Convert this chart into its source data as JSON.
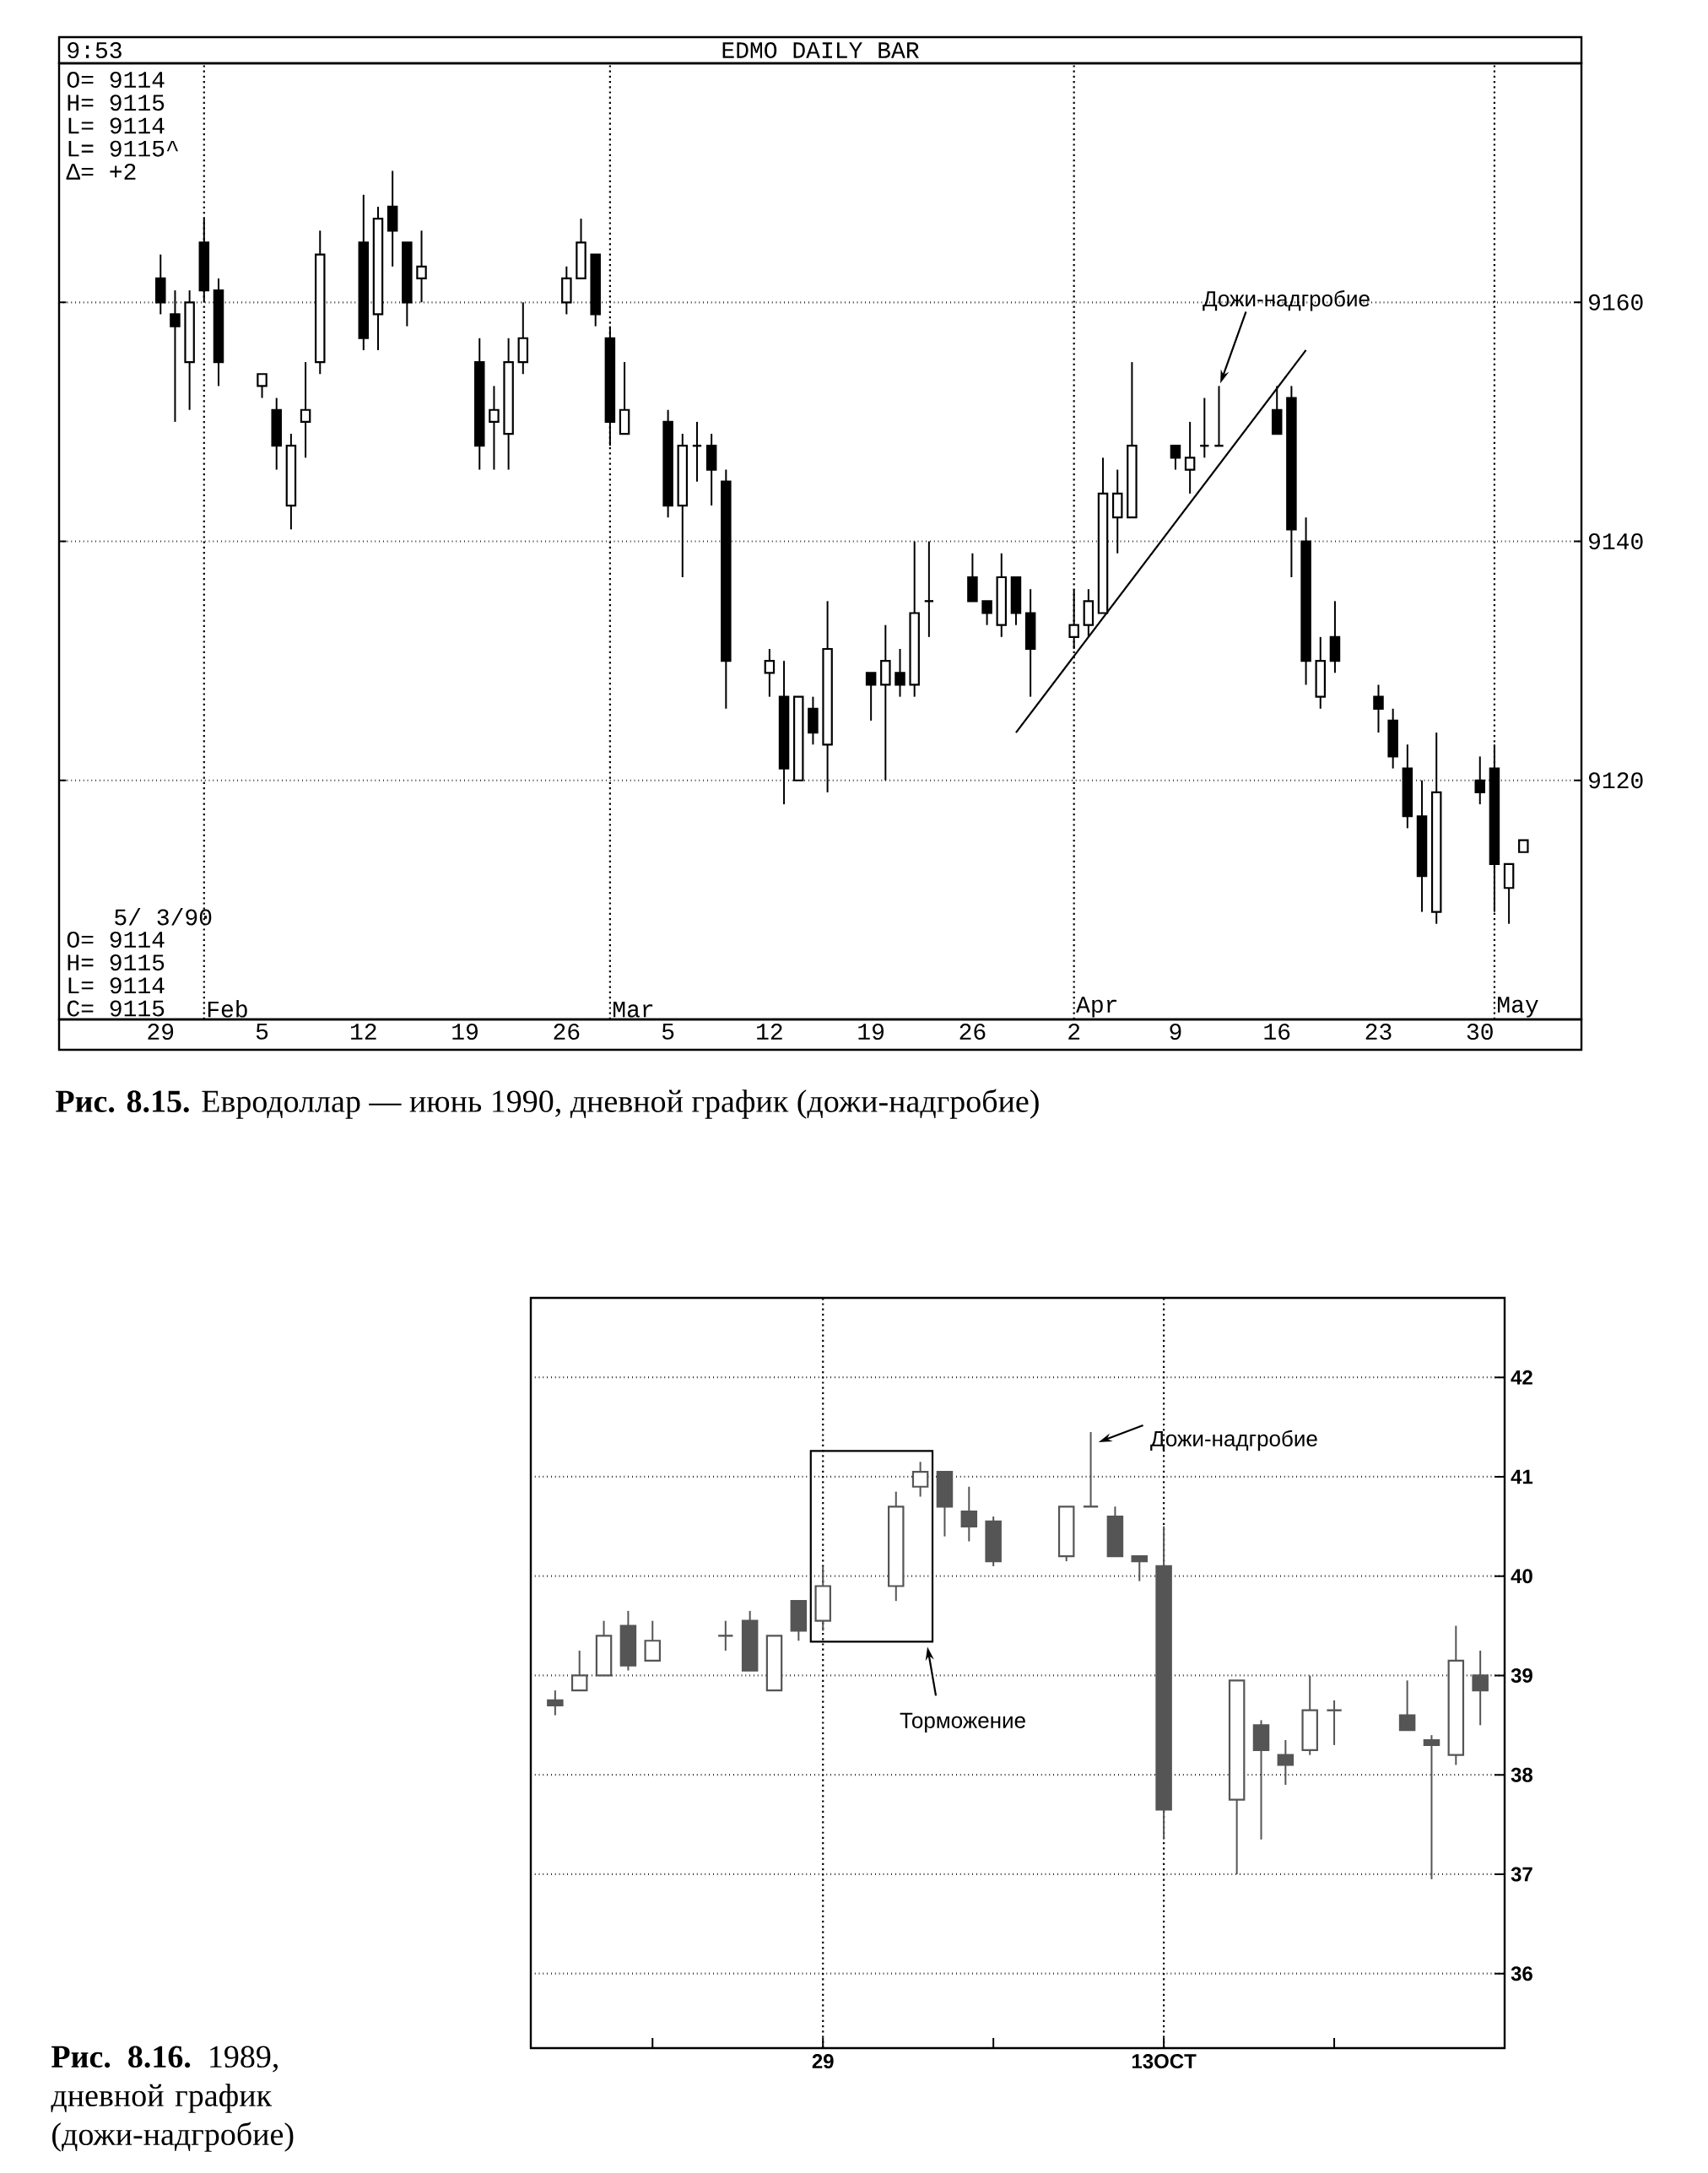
{
  "chart_data": [
    {
      "type": "candlestick",
      "title": "EDMO DAILY BAR",
      "color": "#000000",
      "annotations": [
        "9:53",
        "O= 9114",
        "H= 9115",
        "L= 9114",
        "L= 9115^",
        "Δ= +2",
        "5/ 3/90",
        "O= 9114",
        "H= 9115",
        "L= 9114",
        "C= 9115",
        "Дожи-надгробие",
        "**Рис. 8.15.** Евродоллар — июнь 1990, дневной график (дожи-надгробие)"
      ],
      "x": [
        "1990-01-29",
        "1990-01-30",
        "1990-01-31",
        "1990-02-01",
        "1990-02-02",
        "1990-02-05",
        "1990-02-06",
        "1990-02-07",
        "1990-02-08",
        "1990-02-09",
        "1990-02-12",
        "1990-02-13",
        "1990-02-14",
        "1990-02-15",
        "1990-02-16",
        "1990-02-20",
        "1990-02-21",
        "1990-02-22",
        "1990-02-23",
        "1990-02-26",
        "1990-02-27",
        "1990-02-28",
        "1990-03-01",
        "1990-03-02",
        "1990-03-05",
        "1990-03-06",
        "1990-03-07",
        "1990-03-08",
        "1990-03-09",
        "1990-03-12",
        "1990-03-13",
        "1990-03-14",
        "1990-03-15",
        "1990-03-16",
        "1990-03-19",
        "1990-03-20",
        "1990-03-21",
        "1990-03-22",
        "1990-03-23",
        "1990-03-26",
        "1990-03-27",
        "1990-03-28",
        "1990-03-29",
        "1990-03-30",
        "1990-04-02",
        "1990-04-03",
        "1990-04-04",
        "1990-04-05",
        "1990-04-06",
        "1990-04-09",
        "1990-04-10",
        "1990-04-11",
        "1990-04-12",
        "1990-04-16",
        "1990-04-17",
        "1990-04-18",
        "1990-04-19",
        "1990-04-20",
        "1990-04-23",
        "1990-04-24",
        "1990-04-25",
        "1990-04-26",
        "1990-04-27",
        "1990-04-30",
        "1990-05-01",
        "1990-05-02",
        "1990-05-03"
      ],
      "ohlc": [
        [
          9162,
          9164,
          9159,
          9160
        ],
        [
          9159,
          9161,
          9150,
          9158
        ],
        [
          9155,
          9161,
          9151,
          9160
        ],
        [
          9165,
          9167,
          9160,
          9161
        ],
        [
          9161,
          9162,
          9153,
          9155
        ],
        [
          9153,
          9154,
          9152,
          9154
        ],
        [
          9151,
          9152,
          9146,
          9148
        ],
        [
          9143,
          9149,
          9141,
          9148
        ],
        [
          9150,
          9155,
          9147,
          9151
        ],
        [
          9155,
          9166,
          9154,
          9164
        ],
        [
          9165,
          9169,
          9156,
          9157
        ],
        [
          9159,
          9168,
          9156,
          9167
        ],
        [
          9168,
          9171,
          9163,
          9166
        ],
        [
          9165,
          9165,
          9158,
          9160
        ],
        [
          9162,
          9166,
          9160,
          9163
        ],
        [
          9155,
          9157,
          9146,
          9148
        ],
        [
          9150,
          9153,
          9146,
          9151
        ],
        [
          9149,
          9157,
          9146,
          9155
        ],
        [
          9155,
          9160,
          9154,
          9157
        ],
        [
          9160,
          9163,
          9159,
          9162
        ],
        [
          9162,
          9167,
          9162,
          9165
        ],
        [
          9164,
          9164,
          9158,
          9159
        ],
        [
          9157,
          9158,
          9148,
          9150
        ],
        [
          9149,
          9155,
          9149,
          9151
        ],
        [
          9150,
          9151,
          9142,
          9143
        ],
        [
          9143,
          9149,
          9137,
          9148
        ],
        [
          9148,
          9150,
          9145,
          9148
        ],
        [
          9148,
          9149,
          9143,
          9146
        ],
        [
          9145,
          9146,
          9126,
          9130
        ],
        [
          9129,
          9131,
          9127,
          9130
        ],
        [
          9127,
          9130,
          9118,
          9121
        ],
        [
          9120,
          9127,
          9120,
          9127
        ],
        [
          9126,
          9127,
          9123,
          9124
        ],
        [
          9123,
          9135,
          9119,
          9131
        ],
        [
          9129,
          9129,
          9125,
          9128
        ],
        [
          9128,
          9133,
          9120,
          9130
        ],
        [
          9129,
          9131,
          9127,
          9128
        ],
        [
          9128,
          9140,
          9127,
          9134
        ],
        [
          9135,
          9140,
          9132,
          9135
        ],
        [
          9137,
          9139,
          9135,
          9135
        ],
        [
          9135,
          9135,
          9133,
          9134
        ],
        [
          9133,
          9139,
          9132,
          9137
        ],
        [
          9137,
          9137,
          9133,
          9134
        ],
        [
          9134,
          9136,
          9127,
          9131
        ],
        [
          9132,
          9136,
          9131,
          9133
        ],
        [
          9133,
          9136,
          9132,
          9135
        ],
        [
          9134,
          9147,
          9134,
          9144
        ],
        [
          9142,
          9146,
          9139,
          9144
        ],
        [
          9142,
          9155,
          9142,
          9148
        ],
        [
          9148,
          9148,
          9146,
          9147
        ],
        [
          9146,
          9150,
          9144,
          9147
        ],
        [
          9148,
          9152,
          9147,
          9148
        ],
        [
          9148,
          9153,
          9148,
          9148
        ],
        [
          9151,
          9153,
          9149,
          9149
        ],
        [
          9152,
          9153,
          9137,
          9141
        ],
        [
          9140,
          9142,
          9128,
          9130
        ],
        [
          9127,
          9132,
          9126,
          9130
        ],
        [
          9132,
          9135,
          9129,
          9130
        ],
        [
          9127,
          9128,
          9124,
          9126
        ],
        [
          9125,
          9126,
          9121,
          9122
        ],
        [
          9121,
          9123,
          9116,
          9117
        ],
        [
          9117,
          9120,
          9109,
          9112
        ],
        [
          9109,
          9124,
          9108,
          9119
        ],
        [
          9120,
          9122,
          9118,
          9119
        ],
        [
          9121,
          9123,
          9109,
          9113
        ],
        [
          9111,
          9113,
          9108,
          9113
        ],
        [
          9114,
          9115,
          9114,
          9115
        ]
      ],
      "series": [
        {
          "type": "line",
          "x": [
            "1990-03-29",
            "1990-04-18"
          ],
          "values": [
            9124,
            9156
          ],
          "color": "#000000"
        }
      ],
      "xlim": [
        "1990-01-22",
        "1990-05-07"
      ],
      "ylim": [
        9100,
        9180
      ],
      "xticks": [
        {
          "value": "1990-01-29",
          "label": "29"
        },
        {
          "value": "1990-02-05",
          "label": "5"
        },
        {
          "value": "1990-02-12",
          "label": "12"
        },
        {
          "value": "1990-02-19",
          "label": "19"
        },
        {
          "value": "1990-02-26",
          "label": "26"
        },
        {
          "value": "1990-03-05",
          "label": "5"
        },
        {
          "value": "1990-03-12",
          "label": "12"
        },
        {
          "value": "1990-03-19",
          "label": "19"
        },
        {
          "value": "1990-03-26",
          "label": "26"
        },
        {
          "value": "1990-04-02",
          "label": "2"
        },
        {
          "value": "1990-04-09",
          "label": "9"
        },
        {
          "value": "1990-04-16",
          "label": "16"
        },
        {
          "value": "1990-04-23",
          "label": "23"
        },
        {
          "value": "1990-04-30",
          "label": "30"
        }
      ],
      "yticks": [
        9120,
        9140,
        9160
      ],
      "grid": "y",
      "ref_lines": [
        {
          "axis": "x",
          "value": "1990-02-01",
          "label": "Feb",
          "line_style": "dotted"
        },
        {
          "axis": "x",
          "value": "1990-03-01",
          "label": "Mar",
          "line_style": "dotted"
        },
        {
          "axis": "x",
          "value": "1990-04-02",
          "label": "Apr",
          "line_style": "dotted"
        },
        {
          "axis": "x",
          "value": "1990-05-01",
          "label": "May",
          "line_style": "dotted"
        }
      ]
    },
    {
      "type": "candlestick",
      "color": "#555555",
      "annotations": [
        {
          "text": "Дожи-надгробие",
          "x": "1989-10-10",
          "y": 41.45
        },
        "Торможение",
        "**Рис. 8.16.** 1989, дневной график (дожи-надгробие)"
      ],
      "x": [
        "1989-09-18",
        "1989-09-19",
        "1989-09-20",
        "1989-09-21",
        "1989-09-22",
        "1989-09-25",
        "1989-09-26",
        "1989-09-27",
        "1989-09-28",
        "1989-09-29",
        "1989-10-02",
        "1989-10-03",
        "1989-10-04",
        "1989-10-05",
        "1989-10-06",
        "1989-10-09",
        "1989-10-10",
        "1989-10-11",
        "1989-10-12",
        "1989-10-13",
        "1989-10-16",
        "1989-10-17",
        "1989-10-18",
        "1989-10-19",
        "1989-10-20",
        "1989-10-23",
        "1989-10-24",
        "1989-10-25",
        "1989-10-26"
      ],
      "ohlc": [
        [
          38.75,
          38.85,
          38.6,
          38.7
        ],
        [
          38.85,
          39.25,
          38.85,
          39.0
        ],
        [
          39.0,
          39.55,
          39.0,
          39.4
        ],
        [
          39.5,
          39.65,
          39.05,
          39.1
        ],
        [
          39.15,
          39.55,
          39.15,
          39.35
        ],
        [
          39.4,
          39.55,
          39.25,
          39.4
        ],
        [
          39.55,
          39.65,
          39.05,
          39.05
        ],
        [
          38.85,
          39.4,
          38.85,
          39.4
        ],
        [
          39.75,
          39.75,
          39.35,
          39.45
        ],
        [
          39.55,
          40.1,
          39.45,
          39.9
        ],
        [
          39.9,
          40.85,
          39.75,
          40.7
        ],
        [
          40.9,
          41.15,
          40.8,
          41.05
        ],
        [
          41.05,
          41.05,
          40.4,
          40.7
        ],
        [
          40.65,
          40.9,
          40.35,
          40.5
        ],
        [
          40.55,
          40.6,
          40.1,
          40.15
        ],
        [
          40.2,
          40.7,
          40.15,
          40.7
        ],
        [
          40.7,
          41.45,
          40.7,
          40.7
        ],
        [
          40.6,
          40.7,
          40.2,
          40.2
        ],
        [
          40.2,
          40.2,
          39.95,
          40.15
        ],
        [
          40.1,
          40.5,
          37.35,
          37.65
        ],
        [
          37.75,
          38.95,
          37.0,
          38.95
        ],
        [
          38.5,
          38.55,
          37.35,
          38.25
        ],
        [
          38.2,
          38.35,
          37.9,
          38.1
        ],
        [
          38.25,
          39.0,
          38.2,
          38.65
        ],
        [
          38.65,
          38.75,
          38.3,
          38.65
        ],
        [
          38.6,
          38.95,
          38.45,
          38.45
        ],
        [
          38.35,
          38.4,
          36.95,
          38.3
        ],
        [
          38.2,
          39.5,
          38.1,
          39.15
        ],
        [
          39.0,
          39.25,
          38.5,
          38.85
        ]
      ],
      "xlim": [
        "1989-09-17",
        "1989-10-27"
      ],
      "ylim": [
        35.25,
        42.8
      ],
      "xticks": [
        {
          "value": "1989-09-22",
          "label": null
        },
        {
          "value": "1989-09-29",
          "label": "29"
        },
        {
          "value": "1989-10-06",
          "label": null
        },
        {
          "value": "1989-10-13",
          "label": "13OCT"
        },
        {
          "value": "1989-10-20",
          "label": null
        }
      ],
      "yticks": [
        36,
        37,
        38,
        39,
        40,
        41,
        42
      ],
      "grid": "y",
      "ref_lines": [
        {
          "axis": "x",
          "value": "1989-09-29",
          "line_style": "dotted"
        },
        {
          "axis": "x",
          "value": "1989-10-13",
          "line_style": "dotted"
        }
      ]
    }
  ]
}
